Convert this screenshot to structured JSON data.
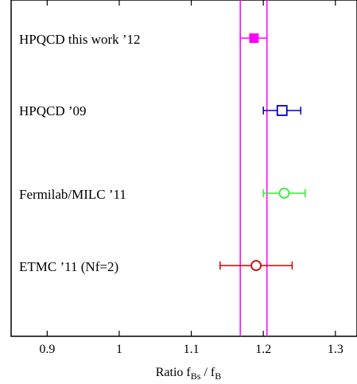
{
  "chart_data": {
    "type": "scatter",
    "xlabel": {
      "prefix": "Ratio f",
      "sub1": "Bs",
      "mid": " / f",
      "sub2": "B"
    },
    "xlim": [
      0.85,
      1.33
    ],
    "xticks": [
      {
        "value": 0.9,
        "label": "0.9"
      },
      {
        "value": 1.0,
        "label": "1"
      },
      {
        "value": 1.1,
        "label": "1.1"
      },
      {
        "value": 1.2,
        "label": "1.2"
      },
      {
        "value": 1.3,
        "label": "1.3"
      }
    ],
    "band": {
      "low": 1.168,
      "high": 1.205,
      "color": "#ff00ff"
    },
    "points": [
      {
        "label": "HPQCD this work ’12",
        "value": 1.187,
        "err_low": 1.168,
        "err_high": 1.205,
        "color": "#ff00ff",
        "marker": "filled-square"
      },
      {
        "label": "HPQCD ’09",
        "value": 1.226,
        "err_low": 1.2,
        "err_high": 1.252,
        "color": "#0000cc",
        "marker": "open-square"
      },
      {
        "label": "Fermilab/MILC ’11",
        "value": 1.229,
        "err_low": 1.2,
        "err_high": 1.258,
        "color": "#33ee33",
        "marker": "open-circle"
      },
      {
        "label": "ETMC ’11 (Nf=2)",
        "value": 1.19,
        "err_low": 1.14,
        "err_high": 1.24,
        "color": "#cc0000",
        "marker": "open-circle"
      }
    ],
    "grid": false,
    "legend": "none"
  }
}
